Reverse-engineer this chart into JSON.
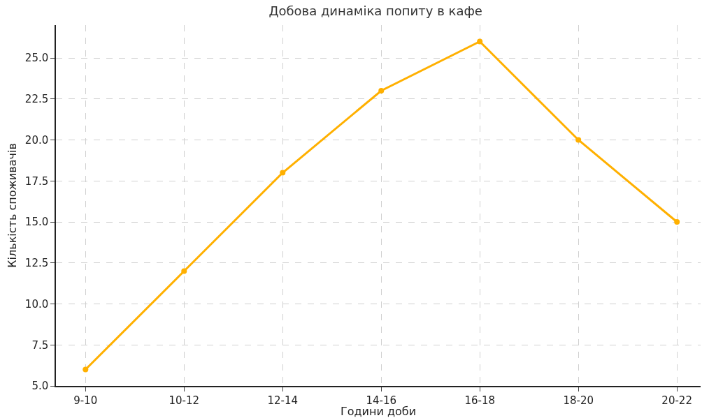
{
  "chart_data": {
    "type": "line",
    "title": "Добова динаміка попиту в кафе",
    "xlabel": "Години доби",
    "ylabel": "Кількість споживачів",
    "categories": [
      "9-10",
      "10-12",
      "12-14",
      "14-16",
      "16-18",
      "18-20",
      "20-22"
    ],
    "series": [
      {
        "color": "#ffb000",
        "values": [
          6,
          12,
          18,
          23,
          26,
          20,
          15
        ]
      }
    ],
    "ylim": [
      5,
      27
    ],
    "yticks": [
      {
        "value": 5,
        "label": "5.0"
      },
      {
        "value": 7.5,
        "label": "7.5"
      },
      {
        "value": 10,
        "label": "10.0"
      },
      {
        "value": 12.5,
        "label": "12.5"
      },
      {
        "value": 15,
        "label": "15.0"
      },
      {
        "value": 17.5,
        "label": "17.5"
      },
      {
        "value": 20,
        "label": "20.0"
      },
      {
        "value": 22.5,
        "label": "22.5"
      },
      {
        "value": 25,
        "label": "25.0"
      }
    ],
    "grid": true,
    "marker": "circle",
    "line_style": "solid"
  }
}
